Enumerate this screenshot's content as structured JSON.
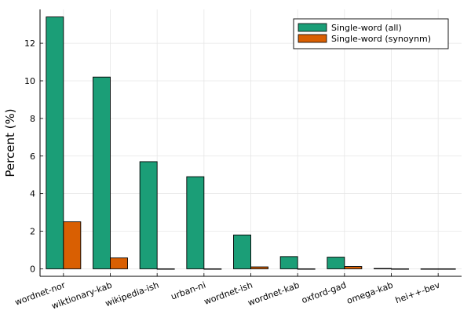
{
  "chart_data": {
    "type": "bar",
    "title": "",
    "xlabel": "",
    "ylabel": "Percent (%)",
    "categories": [
      "wordnet-nor",
      "wiktionary-kab",
      "wikipedia-ish",
      "urban-ni",
      "wordnet-ish",
      "wordnet-kab",
      "oxford-gad",
      "omega-kab",
      "hei++-bev"
    ],
    "series": [
      {
        "name": "Single-word (all)",
        "color": "#1b9e77",
        "values": [
          13.4,
          10.2,
          5.7,
          4.9,
          1.8,
          0.65,
          0.62,
          0.02,
          0.0
        ]
      },
      {
        "name": "Single-word (synoynm)",
        "color": "#d95f02",
        "values": [
          2.5,
          0.58,
          0.0,
          0.0,
          0.1,
          0.0,
          0.12,
          0.0,
          0.0
        ]
      }
    ],
    "yticks": [
      0,
      2,
      4,
      6,
      8,
      10,
      12
    ],
    "ylim": [
      -0.4,
      13.8
    ],
    "grid": true,
    "legend_position": "top-right"
  }
}
